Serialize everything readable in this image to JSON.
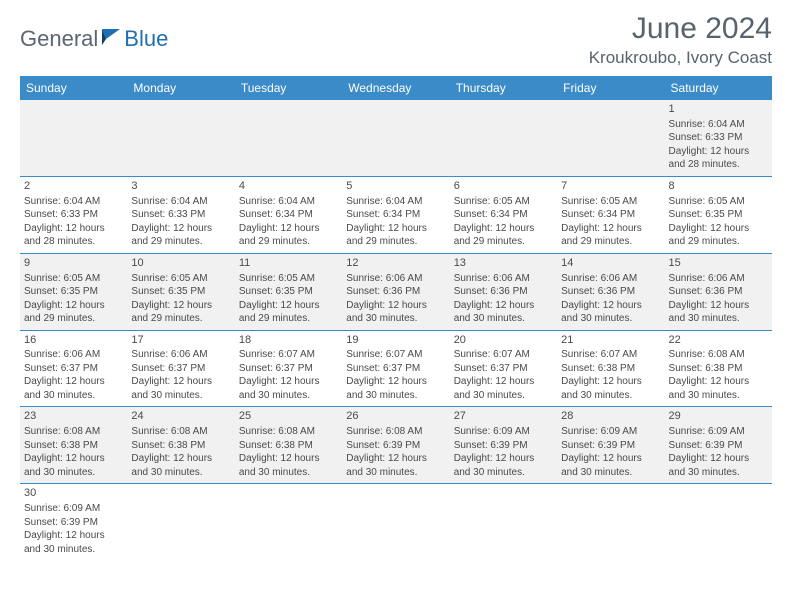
{
  "logo": {
    "part1": "General",
    "part2": "Blue"
  },
  "title": "June 2024",
  "location": "Kroukroubo, Ivory Coast",
  "colors": {
    "header_bg": "#3b8bc9",
    "header_fg": "#ffffff",
    "row_alt_bg": "#f1f1f1",
    "border": "#3b8bc9",
    "title_color": "#58636d",
    "logo_gray": "#5c6670",
    "logo_blue": "#1f6fb2"
  },
  "weekdays": [
    "Sunday",
    "Monday",
    "Tuesday",
    "Wednesday",
    "Thursday",
    "Friday",
    "Saturday"
  ],
  "weeks": [
    [
      null,
      null,
      null,
      null,
      null,
      null,
      {
        "n": "1",
        "sr": "6:04 AM",
        "ss": "6:33 PM",
        "dl": "12 hours and 28 minutes."
      }
    ],
    [
      {
        "n": "2",
        "sr": "6:04 AM",
        "ss": "6:33 PM",
        "dl": "12 hours and 28 minutes."
      },
      {
        "n": "3",
        "sr": "6:04 AM",
        "ss": "6:33 PM",
        "dl": "12 hours and 29 minutes."
      },
      {
        "n": "4",
        "sr": "6:04 AM",
        "ss": "6:34 PM",
        "dl": "12 hours and 29 minutes."
      },
      {
        "n": "5",
        "sr": "6:04 AM",
        "ss": "6:34 PM",
        "dl": "12 hours and 29 minutes."
      },
      {
        "n": "6",
        "sr": "6:05 AM",
        "ss": "6:34 PM",
        "dl": "12 hours and 29 minutes."
      },
      {
        "n": "7",
        "sr": "6:05 AM",
        "ss": "6:34 PM",
        "dl": "12 hours and 29 minutes."
      },
      {
        "n": "8",
        "sr": "6:05 AM",
        "ss": "6:35 PM",
        "dl": "12 hours and 29 minutes."
      }
    ],
    [
      {
        "n": "9",
        "sr": "6:05 AM",
        "ss": "6:35 PM",
        "dl": "12 hours and 29 minutes."
      },
      {
        "n": "10",
        "sr": "6:05 AM",
        "ss": "6:35 PM",
        "dl": "12 hours and 29 minutes."
      },
      {
        "n": "11",
        "sr": "6:05 AM",
        "ss": "6:35 PM",
        "dl": "12 hours and 29 minutes."
      },
      {
        "n": "12",
        "sr": "6:06 AM",
        "ss": "6:36 PM",
        "dl": "12 hours and 30 minutes."
      },
      {
        "n": "13",
        "sr": "6:06 AM",
        "ss": "6:36 PM",
        "dl": "12 hours and 30 minutes."
      },
      {
        "n": "14",
        "sr": "6:06 AM",
        "ss": "6:36 PM",
        "dl": "12 hours and 30 minutes."
      },
      {
        "n": "15",
        "sr": "6:06 AM",
        "ss": "6:36 PM",
        "dl": "12 hours and 30 minutes."
      }
    ],
    [
      {
        "n": "16",
        "sr": "6:06 AM",
        "ss": "6:37 PM",
        "dl": "12 hours and 30 minutes."
      },
      {
        "n": "17",
        "sr": "6:06 AM",
        "ss": "6:37 PM",
        "dl": "12 hours and 30 minutes."
      },
      {
        "n": "18",
        "sr": "6:07 AM",
        "ss": "6:37 PM",
        "dl": "12 hours and 30 minutes."
      },
      {
        "n": "19",
        "sr": "6:07 AM",
        "ss": "6:37 PM",
        "dl": "12 hours and 30 minutes."
      },
      {
        "n": "20",
        "sr": "6:07 AM",
        "ss": "6:37 PM",
        "dl": "12 hours and 30 minutes."
      },
      {
        "n": "21",
        "sr": "6:07 AM",
        "ss": "6:38 PM",
        "dl": "12 hours and 30 minutes."
      },
      {
        "n": "22",
        "sr": "6:08 AM",
        "ss": "6:38 PM",
        "dl": "12 hours and 30 minutes."
      }
    ],
    [
      {
        "n": "23",
        "sr": "6:08 AM",
        "ss": "6:38 PM",
        "dl": "12 hours and 30 minutes."
      },
      {
        "n": "24",
        "sr": "6:08 AM",
        "ss": "6:38 PM",
        "dl": "12 hours and 30 minutes."
      },
      {
        "n": "25",
        "sr": "6:08 AM",
        "ss": "6:38 PM",
        "dl": "12 hours and 30 minutes."
      },
      {
        "n": "26",
        "sr": "6:08 AM",
        "ss": "6:39 PM",
        "dl": "12 hours and 30 minutes."
      },
      {
        "n": "27",
        "sr": "6:09 AM",
        "ss": "6:39 PM",
        "dl": "12 hours and 30 minutes."
      },
      {
        "n": "28",
        "sr": "6:09 AM",
        "ss": "6:39 PM",
        "dl": "12 hours and 30 minutes."
      },
      {
        "n": "29",
        "sr": "6:09 AM",
        "ss": "6:39 PM",
        "dl": "12 hours and 30 minutes."
      }
    ],
    [
      {
        "n": "30",
        "sr": "6:09 AM",
        "ss": "6:39 PM",
        "dl": "12 hours and 30 minutes."
      },
      null,
      null,
      null,
      null,
      null,
      null
    ]
  ],
  "labels": {
    "sunrise": "Sunrise:",
    "sunset": "Sunset:",
    "daylight": "Daylight:"
  }
}
